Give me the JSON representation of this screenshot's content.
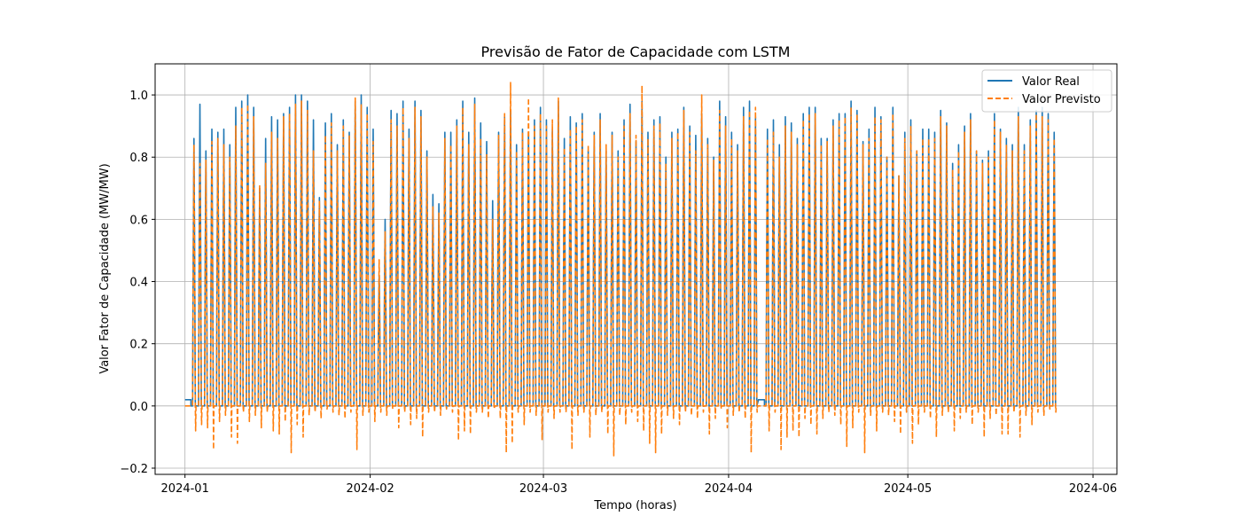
{
  "chart_data": {
    "type": "line",
    "title": "Previsão de Fator de Capacidade com LSTM",
    "xlabel": "Tempo (horas)",
    "ylabel": "Valor Fator de Capacidade (MW/MW)",
    "x_range": [
      "2023-12-27",
      "2024-06-05"
    ],
    "ylim": [
      -0.22,
      1.1
    ],
    "x_ticks": [
      "2024-01",
      "2024-02",
      "2024-03",
      "2024-04",
      "2024-05",
      "2024-06"
    ],
    "y_ticks": [
      "−0.2",
      "0.0",
      "0.2",
      "0.4",
      "0.6",
      "0.8",
      "1.0"
    ],
    "grid": true,
    "legend_position": "top-right",
    "series": [
      {
        "name": "Valor Real",
        "color": "#1f77b4",
        "style": "solid",
        "resolution": "hourly",
        "daily_peaks": [
          0.02,
          0.86,
          0.97,
          0.82,
          0.89,
          0.88,
          0.89,
          0.84,
          0.96,
          0.98,
          1.0,
          0.96,
          0.7,
          0.86,
          0.93,
          0.92,
          0.94,
          0.96,
          1.0,
          1.0,
          0.98,
          0.92,
          0.67,
          0.91,
          0.94,
          0.84,
          0.92,
          0.88,
          0.98,
          1.0,
          0.96,
          0.89,
          0.42,
          0.6,
          0.95,
          0.94,
          0.98,
          0.89,
          0.98,
          0.95,
          0.82,
          0.68,
          0.65,
          0.88,
          0.88,
          0.92,
          0.98,
          0.88,
          0.99,
          0.91,
          0.85,
          0.66,
          0.88,
          0.93,
          0.95,
          0.84,
          0.89,
          0.88,
          0.92,
          0.96,
          0.92,
          0.89,
          0.98,
          0.86,
          0.93,
          0.91,
          0.94,
          0.82,
          0.88,
          0.94,
          0.82,
          0.88,
          0.82,
          0.92,
          0.97,
          0.85,
          0.98,
          0.88,
          0.92,
          0.93,
          0.8,
          0.88,
          0.89,
          0.96,
          0.9,
          0.87,
          0.94,
          0.86,
          0.8,
          0.98,
          0.93,
          0.88,
          0.84,
          0.96,
          0.98,
          0.93,
          0.02,
          0.89,
          0.92,
          0.84,
          0.93,
          0.91,
          0.86,
          0.94,
          0.96,
          0.96,
          0.86,
          0.86,
          0.92,
          0.94,
          0.94,
          0.98,
          0.95,
          0.85,
          0.89,
          0.96,
          0.93,
          0.8,
          0.96,
          0.74,
          0.88,
          0.92,
          0.82,
          0.89,
          0.89,
          0.88,
          0.95,
          0.91,
          0.78,
          0.84,
          0.9,
          0.94,
          0.82,
          0.79,
          0.82,
          0.94,
          0.89,
          0.86,
          0.84,
          0.96,
          0.84,
          0.92,
          0.95,
          0.96,
          0.94,
          0.88
        ],
        "daily_troughs_pattern": "0.0 at night"
      },
      {
        "name": "Valor Previsto",
        "color": "#ff7f0e",
        "style": "dashed",
        "resolution": "hourly",
        "daily_peaks": [
          0.0,
          0.84,
          0.78,
          0.79,
          0.85,
          0.86,
          0.84,
          0.8,
          0.9,
          0.96,
          0.97,
          0.93,
          0.71,
          0.78,
          0.88,
          0.86,
          0.93,
          0.94,
          0.97,
          0.98,
          0.95,
          0.82,
          0.66,
          0.87,
          0.91,
          0.82,
          0.9,
          0.87,
          0.99,
          0.97,
          0.94,
          0.85,
          0.47,
          0.56,
          0.92,
          0.9,
          0.96,
          0.86,
          0.96,
          0.93,
          0.8,
          0.64,
          0.62,
          0.86,
          0.84,
          0.9,
          0.96,
          0.84,
          0.97,
          0.86,
          0.81,
          0.6,
          0.87,
          0.94,
          1.04,
          0.82,
          0.88,
          0.99,
          0.9,
          0.94,
          0.9,
          0.92,
          0.99,
          0.83,
          0.89,
          0.9,
          0.92,
          0.84,
          0.87,
          0.92,
          0.84,
          0.87,
          0.8,
          0.9,
          0.94,
          0.87,
          1.03,
          0.86,
          0.9,
          0.91,
          0.78,
          0.86,
          0.88,
          0.95,
          0.88,
          0.82,
          1.0,
          0.84,
          0.79,
          0.95,
          0.9,
          0.86,
          0.82,
          0.93,
          0.95,
          0.96,
          0.0,
          0.86,
          0.88,
          0.8,
          0.9,
          0.88,
          0.84,
          0.92,
          0.94,
          0.94,
          0.84,
          0.85,
          0.9,
          0.92,
          0.93,
          0.96,
          0.94,
          0.84,
          0.86,
          0.93,
          0.92,
          0.8,
          0.94,
          0.74,
          0.86,
          0.9,
          0.82,
          0.86,
          0.86,
          0.86,
          0.93,
          0.9,
          0.76,
          0.82,
          0.88,
          0.92,
          0.82,
          0.78,
          0.8,
          0.92,
          0.88,
          0.84,
          0.82,
          0.93,
          0.82,
          0.9,
          0.94,
          0.93,
          0.92,
          0.86
        ],
        "daily_troughs": [
          0.0,
          -0.08,
          -0.06,
          -0.07,
          -0.14,
          -0.05,
          -0.03,
          -0.1,
          -0.12,
          -0.02,
          -0.05,
          -0.03,
          -0.07,
          -0.02,
          -0.08,
          -0.09,
          -0.05,
          -0.15,
          -0.06,
          -0.1,
          -0.03,
          -0.02,
          -0.04,
          -0.01,
          -0.02,
          -0.03,
          -0.04,
          -0.02,
          -0.14,
          -0.03,
          -0.02,
          -0.05,
          -0.02,
          -0.03,
          -0.01,
          -0.07,
          -0.02,
          -0.06,
          -0.04,
          -0.1,
          -0.02,
          -0.02,
          -0.03,
          -0.01,
          -0.02,
          -0.11,
          -0.08,
          -0.09,
          -0.02,
          -0.02,
          -0.04,
          -0.01,
          -0.04,
          -0.15,
          -0.12,
          -0.02,
          -0.06,
          -0.02,
          -0.03,
          -0.11,
          -0.02,
          -0.04,
          -0.02,
          -0.02,
          -0.14,
          -0.03,
          -0.02,
          -0.1,
          -0.03,
          -0.02,
          -0.09,
          -0.16,
          -0.03,
          -0.06,
          -0.02,
          -0.05,
          -0.08,
          -0.12,
          -0.15,
          -0.09,
          -0.03,
          -0.04,
          -0.06,
          -0.02,
          -0.03,
          -0.04,
          -0.02,
          -0.09,
          -0.04,
          -0.01,
          -0.07,
          -0.03,
          -0.02,
          -0.04,
          -0.15,
          -0.02,
          0.0,
          -0.08,
          -0.02,
          -0.14,
          -0.1,
          -0.08,
          -0.1,
          -0.04,
          -0.06,
          -0.09,
          -0.04,
          -0.02,
          -0.03,
          -0.06,
          -0.13,
          -0.07,
          -0.02,
          -0.15,
          -0.03,
          -0.08,
          -0.02,
          -0.03,
          -0.05,
          -0.09,
          -0.02,
          -0.12,
          -0.06,
          -0.02,
          -0.04,
          -0.1,
          -0.03,
          -0.02,
          -0.08,
          -0.04,
          -0.02,
          -0.06,
          -0.02,
          -0.1,
          -0.04,
          -0.03,
          -0.09,
          -0.09,
          -0.02,
          -0.1,
          -0.03,
          -0.06,
          -0.02,
          -0.03,
          -0.01,
          -0.02
        ]
      }
    ]
  }
}
